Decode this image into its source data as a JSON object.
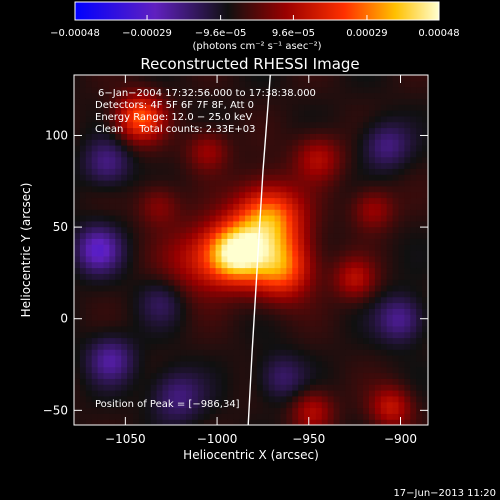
{
  "chart_data": {
    "type": "heatmap",
    "title": "Reconstructed RHESSI Image",
    "xlabel": "Heliocentric X (arcsec)",
    "ylabel": "Heliocentric Y (arcsec)",
    "xlim": [
      -1078,
      -885
    ],
    "ylim": [
      -58,
      133
    ],
    "xticks": [
      -1050,
      -1000,
      -950,
      -900
    ],
    "xtick_labels": [
      "−1050",
      "−1000",
      "−950",
      "−900"
    ],
    "yticks": [
      -50,
      0,
      50,
      100
    ],
    "ytick_labels": [
      "−50",
      "0",
      "50",
      "100"
    ],
    "colorbar": {
      "range": [
        -0.00048,
        0.00048
      ],
      "ticks": [
        -0.00048,
        -0.00029,
        -9.6e-05,
        9.6e-05,
        0.00029,
        0.00048
      ],
      "tick_labels": [
        "−0.00048",
        "−0.00029",
        "−9.6e−05",
        "9.6e−05",
        "0.00029",
        "0.00048"
      ],
      "unit_label": "(photons cm⁻² s⁻¹ asec⁻²)",
      "colors": [
        "#0000ff",
        "#6020c0",
        "#101010",
        "#9a0000",
        "#ff3000",
        "#ffc000",
        "#ffffd0"
      ]
    },
    "annotations": {
      "time_range": "6−Jan−2004 17:32:56.000 to 17:38:38.000",
      "detectors": "Detectors: 4F 5F 6F 7F 8F, Att 0",
      "energy": "Energy Range: 12.0 − 25.0 keV",
      "method": "Clean     Total counts: 2.33E+03",
      "peak": "Position of Peak = [−986,34]"
    },
    "limb_points": [
      [
        -971,
        133
      ],
      [
        -975,
        80
      ],
      [
        -978,
        30
      ],
      [
        -981,
        -20
      ],
      [
        -983,
        -58
      ]
    ],
    "emission_sources": [
      {
        "x": -990,
        "y": 36,
        "amp": 1.0,
        "sigma": 11
      },
      {
        "x": -972,
        "y": 55,
        "amp": 0.8,
        "sigma": 13
      },
      {
        "x": -965,
        "y": 28,
        "amp": 0.7,
        "sigma": 12
      },
      {
        "x": -1010,
        "y": 32,
        "amp": 0.35,
        "sigma": 14
      },
      {
        "x": -1042,
        "y": 110,
        "amp": 0.65,
        "sigma": 9
      },
      {
        "x": -945,
        "y": 88,
        "amp": 0.35,
        "sigma": 9
      },
      {
        "x": -915,
        "y": 60,
        "amp": 0.3,
        "sigma": 8
      },
      {
        "x": -925,
        "y": 22,
        "amp": 0.35,
        "sigma": 8
      },
      {
        "x": -905,
        "y": -48,
        "amp": 0.4,
        "sigma": 8
      },
      {
        "x": -948,
        "y": -50,
        "amp": 0.35,
        "sigma": 8
      },
      {
        "x": -1005,
        "y": 92,
        "amp": 0.3,
        "sigma": 8
      },
      {
        "x": -1032,
        "y": 62,
        "amp": 0.25,
        "sigma": 8
      },
      {
        "x": -1065,
        "y": 38,
        "amp": -0.45,
        "sigma": 9
      },
      {
        "x": -1060,
        "y": 85,
        "amp": -0.3,
        "sigma": 9
      },
      {
        "x": -1058,
        "y": -22,
        "amp": -0.35,
        "sigma": 9
      },
      {
        "x": -1022,
        "y": -42,
        "amp": -0.3,
        "sigma": 10
      },
      {
        "x": -900,
        "y": 0,
        "amp": -0.35,
        "sigma": 9
      },
      {
        "x": -908,
        "y": 95,
        "amp": -0.3,
        "sigma": 9
      },
      {
        "x": -965,
        "y": -32,
        "amp": -0.25,
        "sigma": 9
      },
      {
        "x": -1030,
        "y": 10,
        "amp": -0.2,
        "sigma": 9
      }
    ]
  },
  "footer": {
    "date": "17−Jun−2013 11:20"
  }
}
